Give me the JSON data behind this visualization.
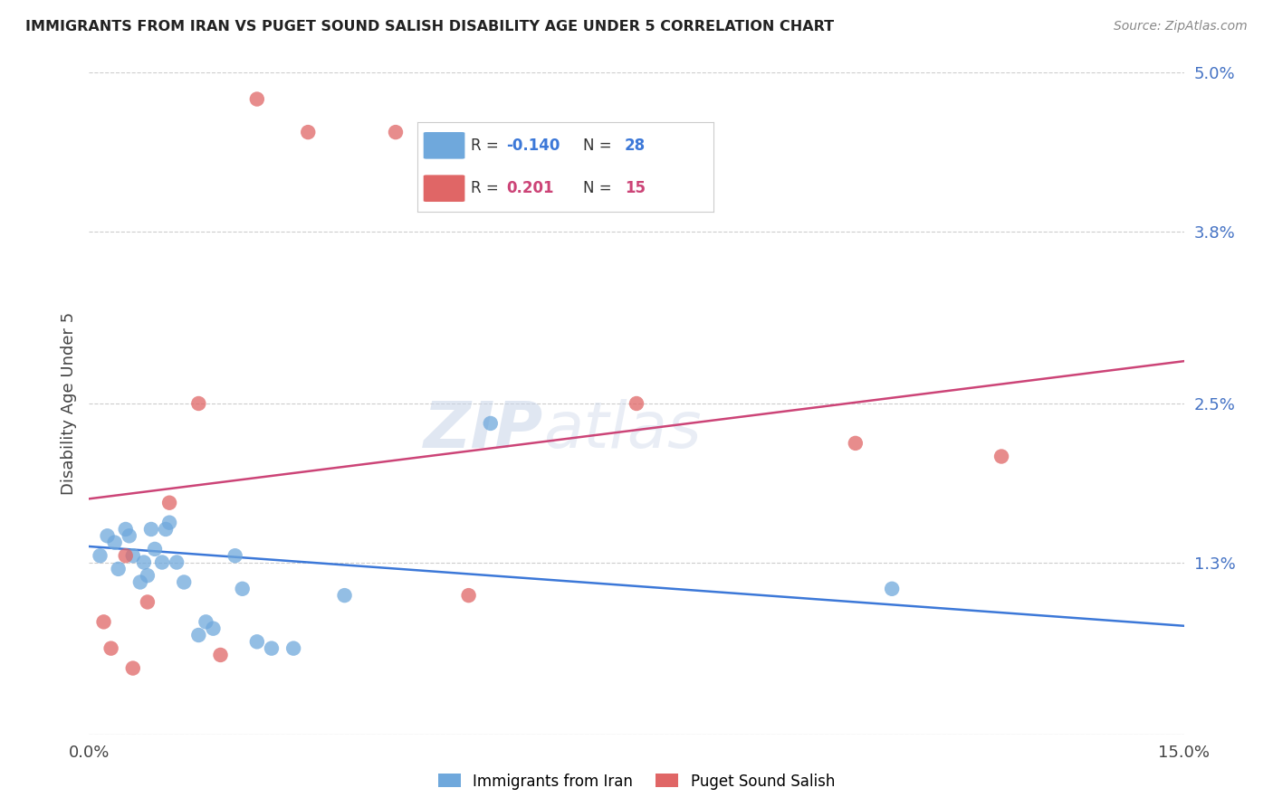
{
  "title": "IMMIGRANTS FROM IRAN VS PUGET SOUND SALISH DISABILITY AGE UNDER 5 CORRELATION CHART",
  "source": "Source: ZipAtlas.com",
  "ylabel": "Disability Age Under 5",
  "xlim": [
    0.0,
    15.0
  ],
  "ylim": [
    0.0,
    5.0
  ],
  "yticks": [
    0.0,
    1.3,
    2.5,
    3.8,
    5.0
  ],
  "ytick_labels": [
    "",
    "1.3%",
    "2.5%",
    "3.8%",
    "5.0%"
  ],
  "xtick_positions": [
    0.0,
    15.0
  ],
  "xtick_labels": [
    "0.0%",
    "15.0%"
  ],
  "blue_legend_R": "-0.140",
  "blue_legend_N": "28",
  "pink_legend_R": "0.201",
  "pink_legend_N": "15",
  "blue_color": "#6fa8dc",
  "pink_color": "#e06666",
  "blue_line_color": "#3c78d8",
  "pink_line_color": "#cc4477",
  "watermark_zip": "ZIP",
  "watermark_atlas": "atlas",
  "blue_points_x": [
    0.15,
    0.25,
    0.35,
    0.4,
    0.5,
    0.55,
    0.6,
    0.7,
    0.75,
    0.8,
    0.85,
    0.9,
    1.0,
    1.05,
    1.1,
    1.2,
    1.3,
    1.5,
    1.6,
    1.7,
    2.0,
    2.1,
    2.3,
    2.5,
    2.8,
    3.5,
    5.5,
    11.0
  ],
  "blue_points_y": [
    1.35,
    1.5,
    1.45,
    1.25,
    1.55,
    1.5,
    1.35,
    1.15,
    1.3,
    1.2,
    1.55,
    1.4,
    1.3,
    1.55,
    1.6,
    1.3,
    1.15,
    0.75,
    0.85,
    0.8,
    1.35,
    1.1,
    0.7,
    0.65,
    0.65,
    1.05,
    2.35,
    1.1
  ],
  "pink_points_x": [
    0.2,
    0.3,
    0.6,
    0.8,
    1.1,
    1.5,
    2.3,
    3.0,
    4.2,
    5.2,
    7.5,
    10.5,
    12.5,
    0.5,
    1.8
  ],
  "pink_points_y": [
    0.85,
    0.65,
    0.5,
    1.0,
    1.75,
    2.5,
    4.8,
    4.55,
    4.55,
    1.05,
    2.5,
    2.2,
    2.1,
    1.35,
    0.6
  ],
  "blue_trend_start_y": 1.42,
  "blue_trend_end_y": 0.82,
  "pink_trend_start_y": 1.78,
  "pink_trend_end_y": 2.82
}
